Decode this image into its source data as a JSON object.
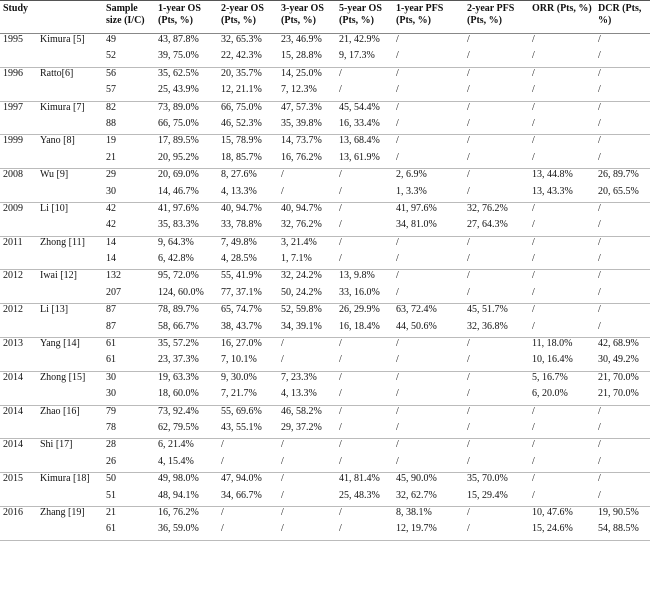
{
  "header": {
    "study": "Study",
    "columns": [
      "Sample size (I/C)",
      "1-year OS (Pts, %)",
      "2-year OS (Pts, %)",
      "3-year OS (Pts, %)",
      "5-year OS (Pts, %)",
      "1-year PFS (Pts, %)",
      "2-year PFS (Pts, %)",
      "ORR (Pts, %)",
      "DCR (Pts, %)"
    ]
  },
  "studies": [
    {
      "year": "1995",
      "author": "Kimura [5]",
      "rows": [
        [
          "49",
          "43, 87.8%",
          "32, 65.3%",
          "23, 46.9%",
          "21, 42.9%",
          "/",
          "/",
          "/",
          "/"
        ],
        [
          "52",
          "39, 75.0%",
          "22, 42.3%",
          "15, 28.8%",
          "9, 17.3%",
          "/",
          "/",
          "/",
          "/"
        ]
      ]
    },
    {
      "year": "1996",
      "author": "Ratto[6]",
      "rows": [
        [
          "56",
          "35, 62.5%",
          "20, 35.7%",
          "14, 25.0%",
          "/",
          "/",
          "/",
          "/",
          "/"
        ],
        [
          "57",
          "25, 43.9%",
          "12, 21.1%",
          "7, 12.3%",
          "/",
          "/",
          "/",
          "/",
          "/"
        ]
      ]
    },
    {
      "year": "1997",
      "author": "Kimura [7]",
      "rows": [
        [
          "82",
          "73, 89.0%",
          "66, 75.0%",
          "47, 57.3%",
          "45, 54.4%",
          "/",
          "/",
          "/",
          "/"
        ],
        [
          "88",
          "66, 75.0%",
          "46, 52.3%",
          "35, 39.8%",
          "16, 33.4%",
          "/",
          "/",
          "/",
          "/"
        ]
      ]
    },
    {
      "year": "1999",
      "author": "Yano [8]",
      "rows": [
        [
          "19",
          "17, 89.5%",
          "15, 78.9%",
          "14, 73.7%",
          "13, 68.4%",
          "/",
          "/",
          "/",
          "/"
        ],
        [
          "21",
          "20, 95.2%",
          "18, 85.7%",
          "16, 76.2%",
          "13, 61.9%",
          "/",
          "/",
          "/",
          "/"
        ]
      ]
    },
    {
      "year": "2008",
      "author": "Wu [9]",
      "rows": [
        [
          "29",
          "20, 69.0%",
          "8, 27.6%",
          "/",
          "/",
          "2, 6.9%",
          "/",
          "13, 44.8%",
          "26, 89.7%"
        ],
        [
          "30",
          "14, 46.7%",
          "4, 13.3%",
          "/",
          "/",
          "1, 3.3%",
          "/",
          "13, 43.3%",
          "20, 65.5%"
        ]
      ]
    },
    {
      "year": "2009",
      "author": "Li [10]",
      "rows": [
        [
          "42",
          "41, 97.6%",
          "40, 94.7%",
          "40, 94.7%",
          "/",
          "41, 97.6%",
          "32, 76.2%",
          "/",
          "/"
        ],
        [
          "42",
          "35, 83.3%",
          "33, 78.8%",
          "32, 76.2%",
          "/",
          "34, 81.0%",
          "27, 64.3%",
          "/",
          "/"
        ]
      ]
    },
    {
      "year": "2011",
      "author": "Zhong [11]",
      "rows": [
        [
          "14",
          "9, 64.3%",
          "7, 49.8%",
          "3, 21.4%",
          "/",
          "/",
          "/",
          "/",
          "/"
        ],
        [
          "14",
          "6, 42.8%",
          "4, 28.5%",
          "1, 7.1%",
          "/",
          "/",
          "/",
          "/",
          "/"
        ]
      ]
    },
    {
      "year": "2012",
      "author": "Iwai [12]",
      "rows": [
        [
          "132",
          "95, 72.0%",
          "55, 41.9%",
          "32, 24.2%",
          "13, 9.8%",
          "/",
          "/",
          "/",
          "/"
        ],
        [
          "207",
          "124, 60.0%",
          "77, 37.1%",
          "50, 24.2%",
          "33, 16.0%",
          "/",
          "/",
          "/",
          "/"
        ]
      ]
    },
    {
      "year": "2012",
      "author": "Li [13]",
      "rows": [
        [
          "87",
          "78, 89.7%",
          "65, 74.7%",
          "52, 59.8%",
          "26, 29.9%",
          "63, 72.4%",
          "45, 51.7%",
          "/",
          "/"
        ],
        [
          "87",
          "58, 66.7%",
          "38, 43.7%",
          "34, 39.1%",
          "16, 18.4%",
          "44, 50.6%",
          "32, 36.8%",
          "/",
          "/"
        ]
      ]
    },
    {
      "year": "2013",
      "author": "Yang [14]",
      "rows": [
        [
          "61",
          "35, 57.2%",
          "16, 27.0%",
          "/",
          "/",
          "/",
          "/",
          "11, 18.0%",
          "42, 68.9%"
        ],
        [
          "61",
          "23, 37.3%",
          "7, 10.1%",
          "/",
          "/",
          "/",
          "/",
          "10, 16.4%",
          "30, 49.2%"
        ]
      ]
    },
    {
      "year": "2014",
      "author": "Zhong [15]",
      "rows": [
        [
          "30",
          "19, 63.3%",
          "9, 30.0%",
          "7, 23.3%",
          "/",
          "/",
          "/",
          "5, 16.7%",
          "21, 70.0%"
        ],
        [
          "30",
          "18, 60.0%",
          "7, 21.7%",
          "4, 13.3%",
          "/",
          "/",
          "/",
          "6, 20.0%",
          "21, 70.0%"
        ]
      ]
    },
    {
      "year": "2014",
      "author": "Zhao [16]",
      "rows": [
        [
          "79",
          "73, 92.4%",
          "55, 69.6%",
          "46, 58.2%",
          "/",
          "/",
          "/",
          "/",
          "/"
        ],
        [
          "78",
          "62, 79.5%",
          "43, 55.1%",
          "29, 37.2%",
          "/",
          "/",
          "/",
          "/",
          "/"
        ]
      ]
    },
    {
      "year": "2014",
      "author": "Shi [17]",
      "rows": [
        [
          "28",
          "6, 21.4%",
          "/",
          "/",
          "/",
          "/",
          "/",
          "/",
          "/"
        ],
        [
          "26",
          "4, 15.4%",
          "/",
          "/",
          "/",
          "/",
          "/",
          "/",
          "/"
        ]
      ]
    },
    {
      "year": "2015",
      "author": "Kimura [18]",
      "rows": [
        [
          "50",
          "49, 98.0%",
          "47, 94.0%",
          "/",
          "41, 81.4%",
          "45, 90.0%",
          "35, 70.0%",
          "/",
          "/"
        ],
        [
          "51",
          "48, 94.1%",
          "34, 66.7%",
          "/",
          "25, 48.3%",
          "32, 62.7%",
          "15, 29.4%",
          "/",
          "/"
        ]
      ]
    },
    {
      "year": "2016",
      "author": "Zhang [19]",
      "rows": [
        [
          "21",
          "16, 76.2%",
          "/",
          "/",
          "/",
          "8, 38.1%",
          "/",
          "10, 47.6%",
          "19, 90.5%"
        ],
        [
          "61",
          "36, 59.0%",
          "/",
          "/",
          "/",
          "12, 19.7%",
          "/",
          "15, 24.6%",
          "54, 88.5%"
        ]
      ]
    }
  ]
}
